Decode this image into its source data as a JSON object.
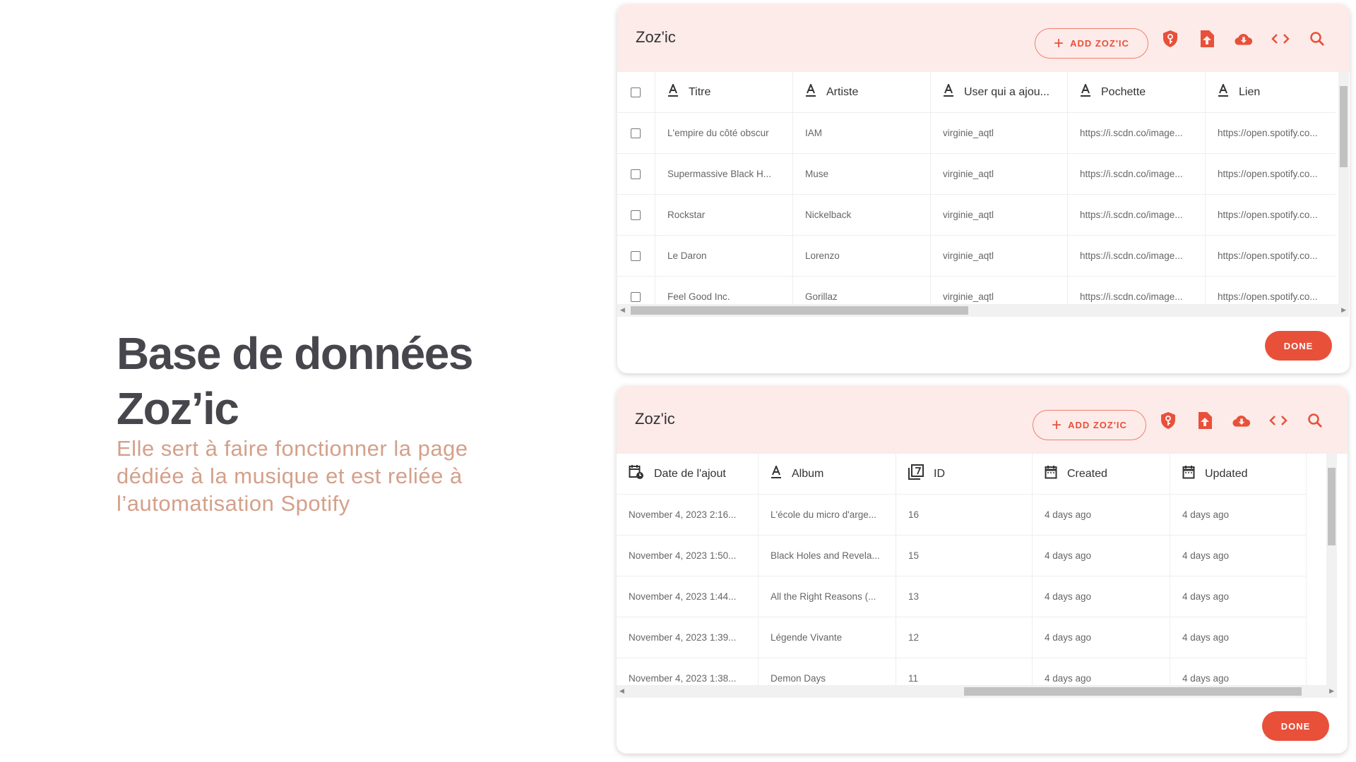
{
  "hero": {
    "title_line1": "Base de données",
    "title_line2": "Zoz’ic",
    "description": "Elle sert à faire fonctionner la page dédiée à la musique et est reliée à l’automatisation Spotify"
  },
  "colors": {
    "accent": "#e8503a",
    "header_bg": "#fcebe9",
    "title": "#48464d",
    "subtitle": "#d4a08a"
  },
  "panels": [
    {
      "title": "Zoz'ic",
      "add_label": "ADD ZOZ'IC",
      "done_label": "DONE",
      "icons": [
        "shield-key-icon",
        "file-upload-icon",
        "cloud-download-icon",
        "code-icon",
        "search-icon"
      ],
      "has_checkbox": true,
      "columns": [
        {
          "label": "Titre",
          "icon": "text-icon"
        },
        {
          "label": "Artiste",
          "icon": "text-icon"
        },
        {
          "label": "User qui a ajou...",
          "icon": "text-icon"
        },
        {
          "label": "Pochette",
          "icon": "text-icon"
        },
        {
          "label": "Lien",
          "icon": "text-icon"
        }
      ],
      "rows": [
        [
          "L'empire du côté obscur",
          "IAM",
          "virginie_aqtl",
          "https://i.scdn.co/image...",
          "https://open.spotify.co..."
        ],
        [
          "Supermassive Black H...",
          "Muse",
          "virginie_aqtl",
          "https://i.scdn.co/image...",
          "https://open.spotify.co..."
        ],
        [
          "Rockstar",
          "Nickelback",
          "virginie_aqtl",
          "https://i.scdn.co/image...",
          "https://open.spotify.co..."
        ],
        [
          "Le Daron",
          "Lorenzo",
          "virginie_aqtl",
          "https://i.scdn.co/image...",
          "https://open.spotify.co..."
        ],
        [
          "Feel Good Inc.",
          "Gorillaz",
          "virginie_aqtl",
          "https://i.scdn.co/image...",
          "https://open.spotify.co..."
        ]
      ]
    },
    {
      "title": "Zoz'ic",
      "add_label": "ADD ZOZ'IC",
      "done_label": "DONE",
      "icons": [
        "shield-key-icon",
        "file-upload-icon",
        "cloud-download-icon",
        "code-icon",
        "search-icon"
      ],
      "has_checkbox": false,
      "columns": [
        {
          "label": "Date de l'ajout",
          "icon": "calendar-clock-icon"
        },
        {
          "label": "Album",
          "icon": "text-icon"
        },
        {
          "label": "ID",
          "icon": "number-icon"
        },
        {
          "label": "Created",
          "icon": "calendar-icon"
        },
        {
          "label": "Updated",
          "icon": "calendar-icon"
        }
      ],
      "rows": [
        [
          "November 4, 2023 2:16...",
          "L'école du micro d'arge...",
          "16",
          "4 days ago",
          "4 days ago"
        ],
        [
          "November 4, 2023 1:50...",
          "Black Holes and Revela...",
          "15",
          "4 days ago",
          "4 days ago"
        ],
        [
          "November 4, 2023 1:44...",
          "All the Right Reasons (...",
          "13",
          "4 days ago",
          "4 days ago"
        ],
        [
          "November 4, 2023 1:39...",
          "Légende Vivante",
          "12",
          "4 days ago",
          "4 days ago"
        ],
        [
          "November 4, 2023 1:38...",
          "Demon Days",
          "11",
          "4 days ago",
          "4 days ago"
        ]
      ]
    }
  ]
}
